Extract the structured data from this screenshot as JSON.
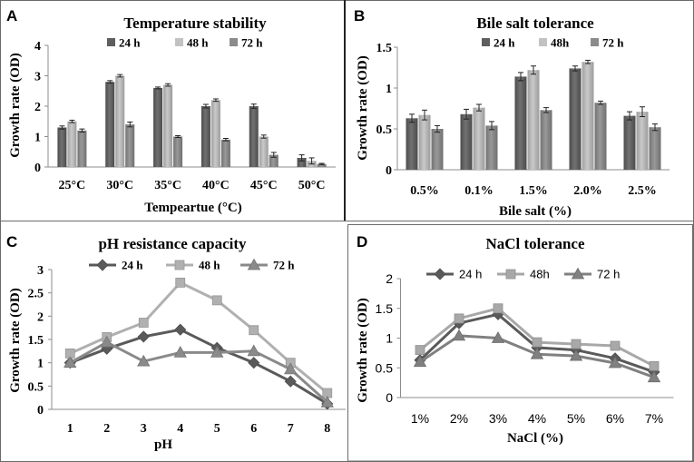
{
  "chart_data": [
    {
      "panel_label": "A",
      "type": "bar",
      "title": "Temperature stability",
      "xlabel": "Tempeartue (°C)",
      "ylabel": "Growth rate (OD)",
      "ylim": [
        0,
        4
      ],
      "yticks": [
        0,
        1,
        2,
        3,
        4
      ],
      "categories": [
        "25°C",
        "30°C",
        "35°C",
        "40°C",
        "45°C",
        "50°C"
      ],
      "legend": "top",
      "grid": false,
      "series": [
        {
          "name": "24 h",
          "color": "#5e5e5e",
          "values": [
            1.3,
            2.8,
            2.6,
            2.0,
            2.0,
            0.3
          ],
          "errors": [
            0.05,
            0.04,
            0.03,
            0.06,
            0.07,
            0.1
          ]
        },
        {
          "name": "48 h",
          "color": "#c2c2c2",
          "values": [
            1.5,
            3.0,
            2.7,
            2.2,
            1.0,
            0.2
          ],
          "errors": [
            0.04,
            0.04,
            0.04,
            0.04,
            0.05,
            0.1
          ]
        },
        {
          "name": "72 h",
          "color": "#8b8b8b",
          "values": [
            1.2,
            1.4,
            1.0,
            0.9,
            0.4,
            0.1
          ],
          "errors": [
            0.05,
            0.08,
            0.03,
            0.04,
            0.08,
            0.02
          ]
        }
      ]
    },
    {
      "panel_label": "B",
      "type": "bar",
      "title": "Bile salt tolerance",
      "xlabel": "Bile salt (%)",
      "ylabel": "Growth rate (OD)",
      "ylim": [
        0,
        1.5
      ],
      "yticks": [
        0,
        0.5,
        1,
        1.5
      ],
      "categories": [
        "0.5%",
        "0.1%",
        "1.5%",
        "2.0%",
        "2.5%"
      ],
      "legend": "top",
      "grid": false,
      "series": [
        {
          "name": "24 h",
          "color": "#5e5e5e",
          "values": [
            0.63,
            0.68,
            1.14,
            1.24,
            0.66
          ],
          "errors": [
            0.05,
            0.06,
            0.05,
            0.03,
            0.05
          ]
        },
        {
          "name": "48h",
          "color": "#c2c2c2",
          "values": [
            0.67,
            0.76,
            1.22,
            1.32,
            0.71
          ],
          "errors": [
            0.06,
            0.04,
            0.05,
            0.02,
            0.06
          ]
        },
        {
          "name": "72 h",
          "color": "#8b8b8b",
          "values": [
            0.5,
            0.54,
            0.73,
            0.82,
            0.52
          ],
          "errors": [
            0.04,
            0.05,
            0.03,
            0.02,
            0.04
          ]
        }
      ]
    },
    {
      "panel_label": "C",
      "type": "line",
      "title": "pH resistance capacity",
      "xlabel": "pH",
      "ylabel": "Growth rate (OD)",
      "ylim": [
        0,
        3
      ],
      "yticks": [
        0,
        0.5,
        1,
        1.5,
        2,
        2.5,
        3
      ],
      "x": [
        1,
        2,
        3,
        4,
        5,
        6,
        7,
        8
      ],
      "legend": "top",
      "grid": false,
      "series": [
        {
          "name": "24 h",
          "color": "#5a5a5a",
          "values": [
            1.0,
            1.3,
            1.56,
            1.71,
            1.32,
            1.0,
            0.6,
            0.12
          ]
        },
        {
          "name": "48 h",
          "color": "#b0b0b0",
          "values": [
            1.2,
            1.55,
            1.86,
            2.72,
            2.34,
            1.7,
            1.0,
            0.35
          ]
        },
        {
          "name": "72 h",
          "color": "#8a8a8a",
          "values": [
            1.0,
            1.44,
            1.03,
            1.22,
            1.22,
            1.25,
            0.86,
            0.15
          ]
        }
      ]
    },
    {
      "panel_label": "D",
      "type": "line",
      "title": "NaCl tolerance",
      "xlabel": "NaCl (%)",
      "ylabel": "Growth rate (OD)",
      "ylim": [
        0,
        2
      ],
      "yticks": [
        0,
        0.5,
        1,
        1.5,
        2
      ],
      "categories": [
        "1%",
        "2%",
        "3%",
        "4%",
        "5%",
        "6%",
        "7%"
      ],
      "legend": "top",
      "grid": false,
      "series": [
        {
          "name": "24 h",
          "color": "#5a5a5a",
          "values": [
            0.63,
            1.25,
            1.4,
            0.84,
            0.8,
            0.66,
            0.43
          ]
        },
        {
          "name": "48h",
          "color": "#a8a8a8",
          "values": [
            0.8,
            1.33,
            1.5,
            0.93,
            0.9,
            0.87,
            0.53
          ]
        },
        {
          "name": "72 h",
          "color": "#808080",
          "values": [
            0.6,
            1.04,
            1.0,
            0.73,
            0.7,
            0.58,
            0.34
          ]
        }
      ]
    }
  ]
}
